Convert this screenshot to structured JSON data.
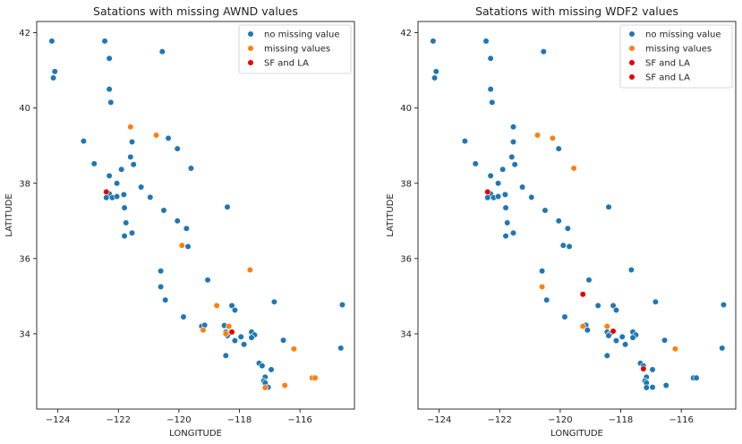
{
  "chart_data": [
    {
      "type": "scatter",
      "title": "Satations with missing AWND values",
      "xlabel": "LONGITUDE",
      "ylabel": "LATITUDE",
      "xlim": [
        -124.7,
        -114.2
      ],
      "ylim": [
        32.0,
        42.3
      ],
      "xticks": [
        -124,
        -122,
        -120,
        -118,
        -116
      ],
      "yticks": [
        34,
        36,
        38,
        40,
        42
      ],
      "xtick_labels": [
        "−124",
        "−122",
        "−120",
        "−118",
        "−116"
      ],
      "ytick_labels": [
        "34",
        "36",
        "38",
        "40",
        "42"
      ],
      "grid": false,
      "legend_position": "top-right",
      "series": [
        {
          "name": "no missing value",
          "color": "#1f77b4",
          "points": [
            [
              -124.2,
              41.78
            ],
            [
              -124.1,
              40.97
            ],
            [
              -124.15,
              40.8
            ],
            [
              -122.45,
              41.78
            ],
            [
              -122.3,
              41.32
            ],
            [
              -122.3,
              40.5
            ],
            [
              -122.25,
              40.15
            ],
            [
              -120.55,
              41.5
            ],
            [
              -123.15,
              39.12
            ],
            [
              -122.8,
              38.52
            ],
            [
              -121.55,
              39.1
            ],
            [
              -121.6,
              38.7
            ],
            [
              -121.5,
              38.5
            ],
            [
              -121.9,
              38.37
            ],
            [
              -122.3,
              38.2
            ],
            [
              -122.05,
              38.0
            ],
            [
              -122.3,
              37.72
            ],
            [
              -122.2,
              37.62
            ],
            [
              -122.05,
              37.65
            ],
            [
              -122.4,
              37.62
            ],
            [
              -121.82,
              37.7
            ],
            [
              -121.25,
              37.9
            ],
            [
              -120.95,
              37.63
            ],
            [
              -121.8,
              37.35
            ],
            [
              -121.75,
              36.95
            ],
            [
              -121.8,
              36.6
            ],
            [
              -121.55,
              36.68
            ],
            [
              -120.35,
              39.2
            ],
            [
              -120.05,
              38.92
            ],
            [
              -119.6,
              38.4
            ],
            [
              -120.5,
              37.28
            ],
            [
              -120.05,
              37.0
            ],
            [
              -119.75,
              36.8
            ],
            [
              -119.7,
              36.32
            ],
            [
              -118.4,
              37.37
            ],
            [
              -120.6,
              35.67
            ],
            [
              -120.6,
              35.25
            ],
            [
              -120.45,
              34.9
            ],
            [
              -119.05,
              35.43
            ],
            [
              -119.85,
              34.45
            ],
            [
              -119.25,
              34.2
            ],
            [
              -119.15,
              34.23
            ],
            [
              -118.5,
              34.22
            ],
            [
              -118.25,
              34.75
            ],
            [
              -118.15,
              34.63
            ],
            [
              -118.45,
              34.05
            ],
            [
              -118.35,
              34.0
            ],
            [
              -118.4,
              33.95
            ],
            [
              -118.15,
              33.82
            ],
            [
              -117.95,
              33.92
            ],
            [
              -117.85,
              33.72
            ],
            [
              -117.6,
              34.05
            ],
            [
              -117.5,
              33.97
            ],
            [
              -117.6,
              33.9
            ],
            [
              -118.45,
              33.42
            ],
            [
              -117.35,
              33.22
            ],
            [
              -117.25,
              33.15
            ],
            [
              -117.15,
              32.85
            ],
            [
              -117.2,
              32.75
            ],
            [
              -117.15,
              32.7
            ],
            [
              -117.05,
              32.58
            ],
            [
              -116.95,
              33.05
            ],
            [
              -116.85,
              34.85
            ],
            [
              -116.55,
              33.83
            ],
            [
              -114.65,
              33.62
            ],
            [
              -114.6,
              34.77
            ]
          ]
        },
        {
          "name": "missing values",
          "color": "#ff7f0e",
          "points": [
            [
              -121.6,
              39.5
            ],
            [
              -120.75,
              39.28
            ],
            [
              -119.9,
              36.35
            ],
            [
              -117.65,
              35.7
            ],
            [
              -118.75,
              34.75
            ],
            [
              -119.2,
              34.1
            ],
            [
              -118.35,
              34.2
            ],
            [
              -118.45,
              34.0
            ],
            [
              -116.2,
              33.6
            ],
            [
              -117.15,
              32.57
            ],
            [
              -116.5,
              32.63
            ],
            [
              -115.6,
              32.83
            ],
            [
              -115.5,
              32.83
            ]
          ]
        },
        {
          "name": "SF and LA",
          "color": "#e60000",
          "points": [
            [
              -122.4,
              37.77
            ],
            [
              -118.25,
              34.05
            ]
          ]
        }
      ]
    },
    {
      "type": "scatter",
      "title": "Satations with missing WDF2 values",
      "xlabel": "LONGITUDE",
      "ylabel": "LATITUDE",
      "xlim": [
        -124.7,
        -114.2
      ],
      "ylim": [
        32.0,
        42.3
      ],
      "xticks": [
        -124,
        -122,
        -120,
        -118,
        -116
      ],
      "yticks": [
        34,
        36,
        38,
        40,
        42
      ],
      "xtick_labels": [
        "−124",
        "−122",
        "−120",
        "−118",
        "−116"
      ],
      "ytick_labels": [
        "34",
        "36",
        "38",
        "40",
        "42"
      ],
      "grid": false,
      "legend_position": "top-right",
      "series": [
        {
          "name": "no missing value",
          "color": "#1f77b4",
          "points": [
            [
              -124.2,
              41.78
            ],
            [
              -124.1,
              40.97
            ],
            [
              -124.15,
              40.8
            ],
            [
              -122.45,
              41.78
            ],
            [
              -122.3,
              41.32
            ],
            [
              -122.3,
              40.5
            ],
            [
              -122.25,
              40.15
            ],
            [
              -120.55,
              41.5
            ],
            [
              -123.15,
              39.12
            ],
            [
              -122.8,
              38.52
            ],
            [
              -121.55,
              39.5
            ],
            [
              -121.55,
              39.1
            ],
            [
              -121.6,
              38.7
            ],
            [
              -121.5,
              38.5
            ],
            [
              -121.9,
              38.37
            ],
            [
              -122.3,
              38.2
            ],
            [
              -122.05,
              38.0
            ],
            [
              -122.3,
              37.72
            ],
            [
              -122.2,
              37.62
            ],
            [
              -122.05,
              37.65
            ],
            [
              -122.4,
              37.62
            ],
            [
              -121.82,
              37.7
            ],
            [
              -121.25,
              37.9
            ],
            [
              -120.95,
              37.63
            ],
            [
              -121.8,
              37.35
            ],
            [
              -121.75,
              36.95
            ],
            [
              -121.8,
              36.6
            ],
            [
              -121.55,
              36.68
            ],
            [
              -120.05,
              38.92
            ],
            [
              -120.5,
              37.28
            ],
            [
              -120.05,
              37.0
            ],
            [
              -119.75,
              36.8
            ],
            [
              -119.9,
              36.35
            ],
            [
              -119.7,
              36.32
            ],
            [
              -118.4,
              37.37
            ],
            [
              -120.6,
              35.67
            ],
            [
              -120.45,
              34.9
            ],
            [
              -119.05,
              35.43
            ],
            [
              -118.75,
              34.75
            ],
            [
              -119.85,
              34.45
            ],
            [
              -119.15,
              34.23
            ],
            [
              -119.1,
              34.1
            ],
            [
              -118.25,
              34.75
            ],
            [
              -118.15,
              34.63
            ],
            [
              -118.45,
              34.05
            ],
            [
              -118.35,
              34.0
            ],
            [
              -118.4,
              33.95
            ],
            [
              -118.15,
              33.82
            ],
            [
              -117.95,
              33.92
            ],
            [
              -117.85,
              33.72
            ],
            [
              -117.65,
              35.7
            ],
            [
              -117.6,
              34.05
            ],
            [
              -117.5,
              33.97
            ],
            [
              -117.6,
              33.9
            ],
            [
              -118.45,
              33.42
            ],
            [
              -117.35,
              33.22
            ],
            [
              -117.25,
              33.15
            ],
            [
              -117.15,
              32.85
            ],
            [
              -117.2,
              32.75
            ],
            [
              -117.15,
              32.7
            ],
            [
              -117.15,
              32.57
            ],
            [
              -116.95,
              33.05
            ],
            [
              -116.95,
              32.58
            ],
            [
              -116.85,
              34.85
            ],
            [
              -116.55,
              33.83
            ],
            [
              -116.5,
              32.63
            ],
            [
              -115.6,
              32.83
            ],
            [
              -115.5,
              32.83
            ],
            [
              -114.65,
              33.62
            ],
            [
              -114.6,
              34.77
            ]
          ]
        },
        {
          "name": "missing values",
          "color": "#ff7f0e",
          "points": [
            [
              -120.75,
              39.28
            ],
            [
              -120.25,
              39.2
            ],
            [
              -119.55,
              38.4
            ],
            [
              -120.6,
              35.25
            ],
            [
              -119.25,
              34.2
            ],
            [
              -118.45,
              34.2
            ],
            [
              -116.2,
              33.6
            ]
          ]
        },
        {
          "name": "SF and LA",
          "color": "#e60000",
          "points": [
            [
              -122.4,
              37.77
            ],
            [
              -119.25,
              35.05
            ]
          ]
        },
        {
          "name": "SF and LA",
          "color": "#e60000",
          "points": [
            [
              -118.25,
              34.07
            ],
            [
              -117.25,
              33.07
            ]
          ]
        }
      ]
    }
  ]
}
